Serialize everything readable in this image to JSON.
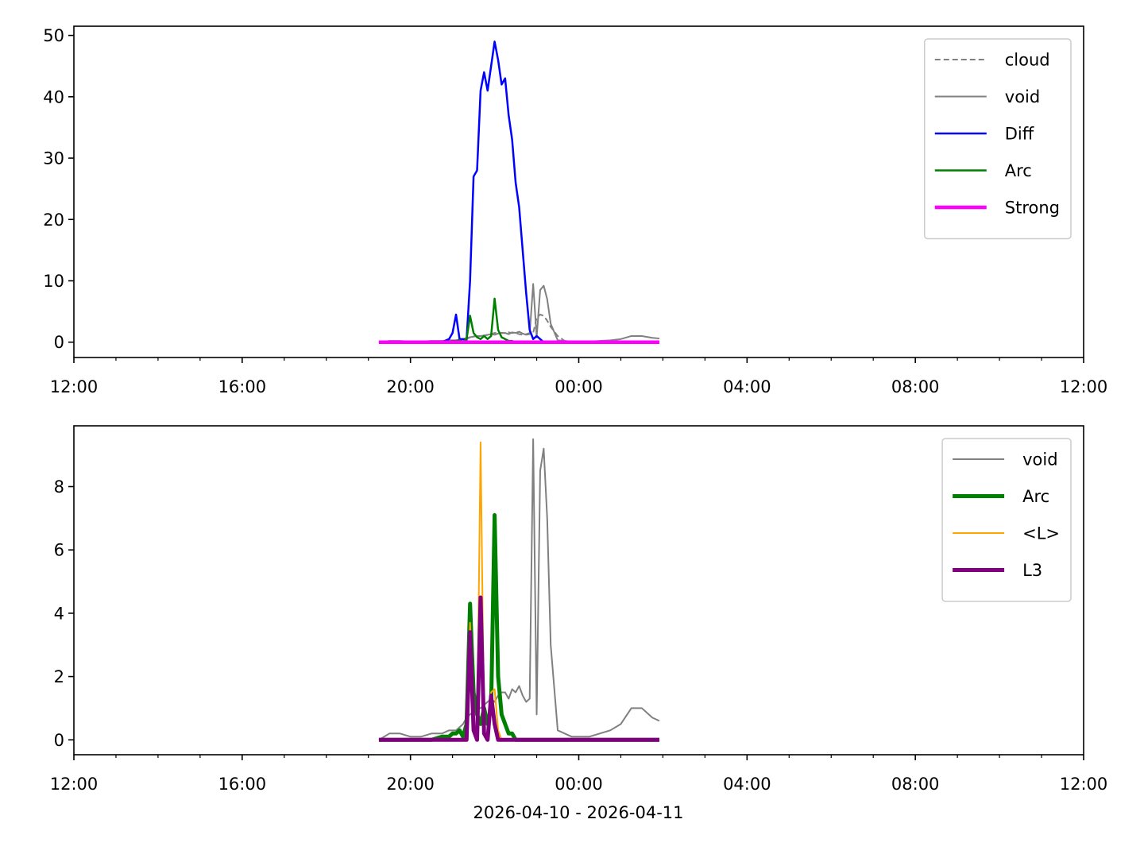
{
  "chart_data": [
    {
      "type": "line",
      "x": [
        "2026-04-10 19:15",
        "2026-04-10 19:30",
        "2026-04-10 19:45",
        "2026-04-10 20:00",
        "2026-04-10 20:15",
        "2026-04-10 20:30",
        "2026-04-10 20:45",
        "2026-04-10 20:55",
        "2026-04-10 21:00",
        "2026-04-10 21:05",
        "2026-04-10 21:10",
        "2026-04-10 21:15",
        "2026-04-10 21:20",
        "2026-04-10 21:25",
        "2026-04-10 21:30",
        "2026-04-10 21:35",
        "2026-04-10 21:40",
        "2026-04-10 21:45",
        "2026-04-10 21:50",
        "2026-04-10 21:55",
        "2026-04-10 22:00",
        "2026-04-10 22:05",
        "2026-04-10 22:10",
        "2026-04-10 22:15",
        "2026-04-10 22:20",
        "2026-04-10 22:25",
        "2026-04-10 22:30",
        "2026-04-10 22:35",
        "2026-04-10 22:40",
        "2026-04-10 22:45",
        "2026-04-10 22:50",
        "2026-04-10 22:55",
        "2026-04-10 23:00",
        "2026-04-10 23:05",
        "2026-04-10 23:10",
        "2026-04-10 23:15",
        "2026-04-10 23:20",
        "2026-04-10 23:30",
        "2026-04-10 23:40",
        "2026-04-10 23:50",
        "2026-04-11 00:00",
        "2026-04-11 00:15",
        "2026-04-11 00:30",
        "2026-04-11 00:45",
        "2026-04-11 01:00",
        "2026-04-11 01:15",
        "2026-04-11 01:30",
        "2026-04-11 01:45",
        "2026-04-11 01:55"
      ],
      "xlim": [
        "2026-04-10 12:00",
        "2026-04-11 12:00"
      ],
      "xticks": [
        {
          "value": "2026-04-10 12:00",
          "label": "12:00"
        },
        {
          "value": "2026-04-10 16:00",
          "label": "16:00"
        },
        {
          "value": "2026-04-10 20:00",
          "label": "20:00"
        },
        {
          "value": "2026-04-11 00:00",
          "label": "00:00"
        },
        {
          "value": "2026-04-11 04:00",
          "label": "04:00"
        },
        {
          "value": "2026-04-11 08:00",
          "label": "08:00"
        },
        {
          "value": "2026-04-11 12:00",
          "label": "12:00"
        }
      ],
      "xminorticks": [
        "2026-04-10 13:00",
        "2026-04-10 14:00",
        "2026-04-10 15:00",
        "2026-04-10 17:00",
        "2026-04-10 18:00",
        "2026-04-10 19:00",
        "2026-04-10 21:00",
        "2026-04-10 22:00",
        "2026-04-10 23:00",
        "2026-04-11 01:00",
        "2026-04-11 02:00",
        "2026-04-11 03:00",
        "2026-04-11 05:00",
        "2026-04-11 06:00",
        "2026-04-11 07:00",
        "2026-04-11 09:00",
        "2026-04-11 10:00",
        "2026-04-11 11:00"
      ],
      "ylim": [
        -2.5,
        51.5
      ],
      "yticks": [
        0,
        10,
        20,
        30,
        40,
        50
      ],
      "legend": "upper right",
      "series": [
        {
          "name": "cloud",
          "color": "#808080",
          "linestyle": "dashed",
          "linewidth": 2,
          "values": [
            0,
            0,
            0,
            0,
            0,
            0,
            0,
            0,
            0,
            0,
            0,
            0.3,
            0.5,
            0.8,
            1,
            1,
            1,
            1,
            1.2,
            1.3,
            1.5,
            1.5,
            1.5,
            1.5,
            1.6,
            1.5,
            1.5,
            1.3,
            1.2,
            1.3,
            1.5,
            1.5,
            4,
            4.5,
            4.3,
            3.5,
            2.5,
            1,
            0.2,
            0,
            0,
            0,
            0,
            0,
            0,
            0,
            0,
            0,
            0
          ]
        },
        {
          "name": "void",
          "color": "#808080",
          "linestyle": "solid",
          "linewidth": 2,
          "values": [
            0,
            0.2,
            0.2,
            0.1,
            0.1,
            0.2,
            0.2,
            0.3,
            0.3,
            0.3,
            0.4,
            0.5,
            0.7,
            0.8,
            0.9,
            1.0,
            1.0,
            1.1,
            1.2,
            1.3,
            1.2,
            1.4,
            1.5,
            1.5,
            1.3,
            1.6,
            1.5,
            1.7,
            1.4,
            1.2,
            1.3,
            9.5,
            0.8,
            8.5,
            9.2,
            7.0,
            3.0,
            0.3,
            0.2,
            0.1,
            0.1,
            0.1,
            0.2,
            0.3,
            0.5,
            1.0,
            1.0,
            0.7,
            0.6
          ]
        },
        {
          "name": "Diff",
          "color": "#0000ff",
          "linestyle": "solid",
          "linewidth": 2.5,
          "values": [
            0,
            0,
            0,
            0,
            0,
            0,
            0,
            0.5,
            1.5,
            4.5,
            0.5,
            0.5,
            0.3,
            10,
            27,
            28,
            41,
            44,
            41,
            45,
            49,
            46,
            42,
            43,
            37,
            33,
            26,
            22,
            15,
            8,
            2,
            0.5,
            1,
            0.5,
            0,
            0,
            0,
            0,
            0,
            0,
            0,
            0,
            0,
            0,
            0,
            0,
            0,
            0,
            0
          ]
        },
        {
          "name": "Arc",
          "color": "#008000",
          "linestyle": "solid",
          "linewidth": 2.5,
          "values": [
            0,
            0,
            0,
            0,
            0,
            0,
            0.1,
            0.1,
            0.2,
            0.2,
            0.3,
            0.1,
            0.5,
            4.3,
            1.5,
            0.8,
            0.5,
            1.0,
            0.5,
            1.0,
            7.1,
            2.0,
            0.8,
            0.5,
            0.2,
            0.2,
            0,
            0,
            0,
            0,
            0,
            0,
            0,
            0,
            0,
            0,
            0,
            0,
            0,
            0,
            0,
            0,
            0,
            0,
            0,
            0,
            0,
            0,
            0
          ]
        },
        {
          "name": "Strong",
          "color": "#ff00ff",
          "linestyle": "solid",
          "linewidth": 4.5,
          "values": [
            0,
            0,
            0,
            0,
            0,
            0,
            0,
            0,
            0,
            0,
            0,
            0,
            0,
            0,
            0,
            0,
            0,
            0,
            0,
            0,
            0,
            0,
            0,
            0,
            0,
            0,
            0,
            0,
            0,
            0,
            0,
            0,
            0,
            0,
            0,
            0,
            0,
            0,
            0,
            0,
            0,
            0,
            0,
            0,
            0,
            0,
            0,
            0,
            0
          ]
        }
      ]
    },
    {
      "type": "line",
      "xlabel": "2026-04-10 - 2026-04-11",
      "x": [
        "2026-04-10 19:15",
        "2026-04-10 19:30",
        "2026-04-10 19:45",
        "2026-04-10 20:00",
        "2026-04-10 20:15",
        "2026-04-10 20:30",
        "2026-04-10 20:45",
        "2026-04-10 20:55",
        "2026-04-10 21:00",
        "2026-04-10 21:05",
        "2026-04-10 21:10",
        "2026-04-10 21:15",
        "2026-04-10 21:20",
        "2026-04-10 21:25",
        "2026-04-10 21:30",
        "2026-04-10 21:35",
        "2026-04-10 21:40",
        "2026-04-10 21:45",
        "2026-04-10 21:50",
        "2026-04-10 21:55",
        "2026-04-10 22:00",
        "2026-04-10 22:05",
        "2026-04-10 22:10",
        "2026-04-10 22:15",
        "2026-04-10 22:20",
        "2026-04-10 22:25",
        "2026-04-10 22:30",
        "2026-04-10 22:35",
        "2026-04-10 22:40",
        "2026-04-10 22:45",
        "2026-04-10 22:50",
        "2026-04-10 22:55",
        "2026-04-10 23:00",
        "2026-04-10 23:05",
        "2026-04-10 23:10",
        "2026-04-10 23:15",
        "2026-04-10 23:20",
        "2026-04-10 23:30",
        "2026-04-10 23:40",
        "2026-04-10 23:50",
        "2026-04-11 00:00",
        "2026-04-11 00:15",
        "2026-04-11 00:30",
        "2026-04-11 00:45",
        "2026-04-11 01:00",
        "2026-04-11 01:15",
        "2026-04-11 01:30",
        "2026-04-11 01:45",
        "2026-04-11 01:55"
      ],
      "xlim": [
        "2026-04-10 12:00",
        "2026-04-11 12:00"
      ],
      "xticks": [
        {
          "value": "2026-04-10 12:00",
          "label": "12:00"
        },
        {
          "value": "2026-04-10 16:00",
          "label": "16:00"
        },
        {
          "value": "2026-04-10 20:00",
          "label": "20:00"
        },
        {
          "value": "2026-04-11 00:00",
          "label": "00:00"
        },
        {
          "value": "2026-04-11 04:00",
          "label": "04:00"
        },
        {
          "value": "2026-04-11 08:00",
          "label": "08:00"
        },
        {
          "value": "2026-04-11 12:00",
          "label": "12:00"
        }
      ],
      "xminorticks": [
        "2026-04-10 13:00",
        "2026-04-10 14:00",
        "2026-04-10 15:00",
        "2026-04-10 17:00",
        "2026-04-10 18:00",
        "2026-04-10 19:00",
        "2026-04-10 21:00",
        "2026-04-10 22:00",
        "2026-04-10 23:00",
        "2026-04-11 01:00",
        "2026-04-11 02:00",
        "2026-04-11 03:00",
        "2026-04-11 05:00",
        "2026-04-11 06:00",
        "2026-04-11 07:00",
        "2026-04-11 09:00",
        "2026-04-11 10:00",
        "2026-04-11 11:00"
      ],
      "ylim": [
        -0.47,
        9.92
      ],
      "yticks": [
        0,
        2,
        4,
        6,
        8
      ],
      "legend": "upper right",
      "series": [
        {
          "name": "void",
          "color": "#808080",
          "linestyle": "solid",
          "linewidth": 2,
          "values": [
            0,
            0.2,
            0.2,
            0.1,
            0.1,
            0.2,
            0.2,
            0.3,
            0.3,
            0.3,
            0.4,
            0.5,
            0.7,
            0.8,
            0.9,
            1.0,
            1.0,
            1.1,
            1.2,
            1.3,
            1.2,
            1.4,
            1.5,
            1.5,
            1.3,
            1.6,
            1.5,
            1.7,
            1.4,
            1.2,
            1.3,
            9.5,
            0.8,
            8.5,
            9.2,
            7.0,
            3.0,
            0.3,
            0.2,
            0.1,
            0.1,
            0.1,
            0.2,
            0.3,
            0.5,
            1.0,
            1.0,
            0.7,
            0.6
          ]
        },
        {
          "name": "Arc",
          "color": "#008000",
          "linestyle": "solid",
          "linewidth": 5,
          "values": [
            0,
            0,
            0,
            0,
            0,
            0,
            0.1,
            0.1,
            0.2,
            0.2,
            0.3,
            0.1,
            0.5,
            4.3,
            1.5,
            0.8,
            0.5,
            1.0,
            0.5,
            1.0,
            7.1,
            2.0,
            0.8,
            0.5,
            0.2,
            0.2,
            0,
            0,
            0,
            0,
            0,
            0,
            0,
            0,
            0,
            0,
            0,
            0,
            0,
            0,
            0,
            0,
            0,
            0,
            0,
            0,
            0,
            0,
            0
          ]
        },
        {
          "name": "<L>",
          "color": "#ffa500",
          "linestyle": "solid",
          "linewidth": 2,
          "values": [
            0,
            0,
            0,
            0,
            0,
            0,
            0,
            0,
            0,
            0,
            0,
            0,
            0,
            3.7,
            0.5,
            0,
            9.4,
            0.3,
            0,
            1.5,
            1.6,
            0.3,
            0,
            0,
            0,
            0,
            0,
            0,
            0,
            0,
            0,
            0,
            0,
            0,
            0,
            0,
            0,
            0,
            0,
            0,
            0,
            0,
            0,
            0,
            0,
            0,
            0,
            0,
            0
          ]
        },
        {
          "name": "L3",
          "color": "#800080",
          "linestyle": "solid",
          "linewidth": 5,
          "values": [
            0,
            0,
            0,
            0,
            0,
            0,
            0,
            0,
            0,
            0,
            0,
            0,
            0,
            3.4,
            0.3,
            0,
            4.5,
            0.2,
            0,
            1.4,
            0.5,
            0,
            0,
            0,
            0,
            0,
            0,
            0,
            0,
            0,
            0,
            0,
            0,
            0,
            0,
            0,
            0,
            0,
            0,
            0,
            0,
            0,
            0,
            0,
            0,
            0,
            0,
            0,
            0
          ]
        }
      ]
    }
  ]
}
